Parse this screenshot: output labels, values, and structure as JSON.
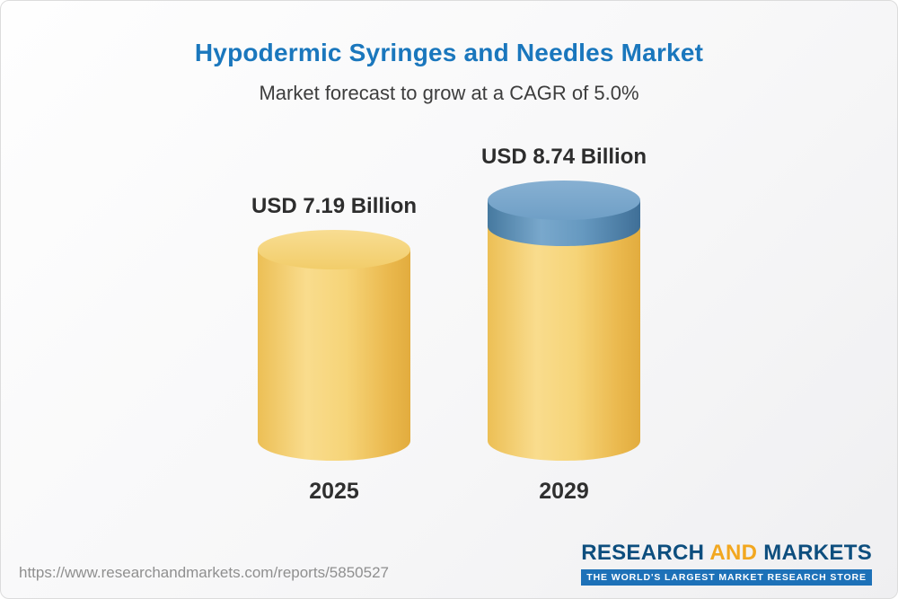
{
  "chart_data": {
    "type": "bar",
    "variant": "3d-cylinder",
    "title": "Hypodermic Syringes and Needles Market",
    "subtitle": "Market forecast to grow at a CAGR of 5.0%",
    "cagr_percent": 5.0,
    "categories": [
      "2025",
      "2029"
    ],
    "values": [
      7.19,
      8.74
    ],
    "value_labels": [
      "USD 7.19 Billion",
      "USD 8.74 Billion"
    ],
    "unit": "USD Billion",
    "ylim": [
      0,
      8.74
    ],
    "grid": false,
    "legend": "none",
    "colors": {
      "base_segment": "#F5CE6B",
      "growth_segment": "#5E92BA",
      "title_text": "#1A77BD",
      "subtitle_text": "#3D3D3D",
      "label_text": "#2D2D2D"
    }
  },
  "footer": {
    "url": "https://www.researchandmarkets.com/reports/5850527",
    "logo": {
      "word1": "RESEARCH",
      "word2": "AND",
      "word3": "MARKETS",
      "tagline": "THE WORLD'S LARGEST MARKET RESEARCH STORE"
    }
  }
}
